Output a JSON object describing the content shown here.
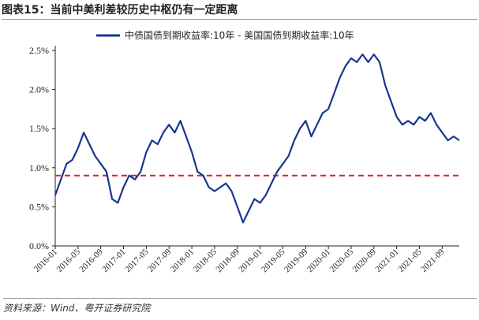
{
  "figure_title": "图表15：当前中美利差较历史中枢仍有一定距离",
  "source_note": "资料来源：Wind、粤开证券研究院",
  "chart_data": {
    "type": "line",
    "title": "图表15：当前中美利差较历史中枢仍有一定距离",
    "xlabel": "",
    "ylabel": "",
    "y_format": "percent",
    "ylim": [
      0.0,
      2.5
    ],
    "y_ticks": [
      0.0,
      0.5,
      1.0,
      1.5,
      2.0,
      2.5
    ],
    "y_tick_labels": [
      "0.0%",
      "0.5%",
      "1.0%",
      "1.5%",
      "2.0%",
      "2.5%"
    ],
    "xlim": [
      "2016-01",
      "2021-12"
    ],
    "x_tick_labels": [
      "2016-01",
      "2016-05",
      "2016-09",
      "2017-01",
      "2017-05",
      "2017-09",
      "2018-01",
      "2018-05",
      "2018-09",
      "2019-01",
      "2019-05",
      "2019-09",
      "2020-01",
      "2020-05",
      "2020-09",
      "2021-01",
      "2021-05",
      "2021-09"
    ],
    "legend": {
      "position": "top",
      "entries": [
        "中债国债到期收益率:10年 - 美国国债到期收益率:10年"
      ]
    },
    "grid": false,
    "series": [
      {
        "name": "中债国债到期收益率:10年 - 美国国债到期收益率:10年",
        "color": "#17368f",
        "x": [
          "2016-01",
          "2016-02",
          "2016-03",
          "2016-04",
          "2016-05",
          "2016-06",
          "2016-07",
          "2016-08",
          "2016-09",
          "2016-10",
          "2016-11",
          "2016-12",
          "2017-01",
          "2017-02",
          "2017-03",
          "2017-04",
          "2017-05",
          "2017-06",
          "2017-07",
          "2017-08",
          "2017-09",
          "2017-10",
          "2017-11",
          "2017-12",
          "2018-01",
          "2018-02",
          "2018-03",
          "2018-04",
          "2018-05",
          "2018-06",
          "2018-07",
          "2018-08",
          "2018-09",
          "2018-10",
          "2018-11",
          "2018-12",
          "2019-01",
          "2019-02",
          "2019-03",
          "2019-04",
          "2019-05",
          "2019-06",
          "2019-07",
          "2019-08",
          "2019-09",
          "2019-10",
          "2019-11",
          "2019-12",
          "2020-01",
          "2020-02",
          "2020-03",
          "2020-04",
          "2020-05",
          "2020-06",
          "2020-07",
          "2020-08",
          "2020-09",
          "2020-10",
          "2020-11",
          "2020-12",
          "2021-01",
          "2021-02",
          "2021-03",
          "2021-04",
          "2021-05",
          "2021-06",
          "2021-07",
          "2021-08",
          "2021-09",
          "2021-10",
          "2021-11",
          "2021-12"
        ],
        "values": [
          0.65,
          0.85,
          1.05,
          1.1,
          1.25,
          1.45,
          1.3,
          1.15,
          1.05,
          0.95,
          0.6,
          0.55,
          0.75,
          0.9,
          0.85,
          0.95,
          1.2,
          1.35,
          1.3,
          1.45,
          1.55,
          1.45,
          1.6,
          1.4,
          1.2,
          0.95,
          0.9,
          0.75,
          0.7,
          0.75,
          0.8,
          0.7,
          0.5,
          0.3,
          0.45,
          0.6,
          0.55,
          0.65,
          0.8,
          0.95,
          1.05,
          1.15,
          1.35,
          1.5,
          1.6,
          1.4,
          1.55,
          1.7,
          1.75,
          1.95,
          2.15,
          2.3,
          2.4,
          2.35,
          2.45,
          2.35,
          2.45,
          2.35,
          2.05,
          1.85,
          1.65,
          1.55,
          1.6,
          1.55,
          1.65,
          1.6,
          1.7,
          1.55,
          1.45,
          1.35,
          1.4,
          1.35
        ]
      }
    ],
    "reference_lines": [
      {
        "axis": "y",
        "value": 0.9,
        "color": "#e02020",
        "style": "dashed"
      }
    ]
  }
}
